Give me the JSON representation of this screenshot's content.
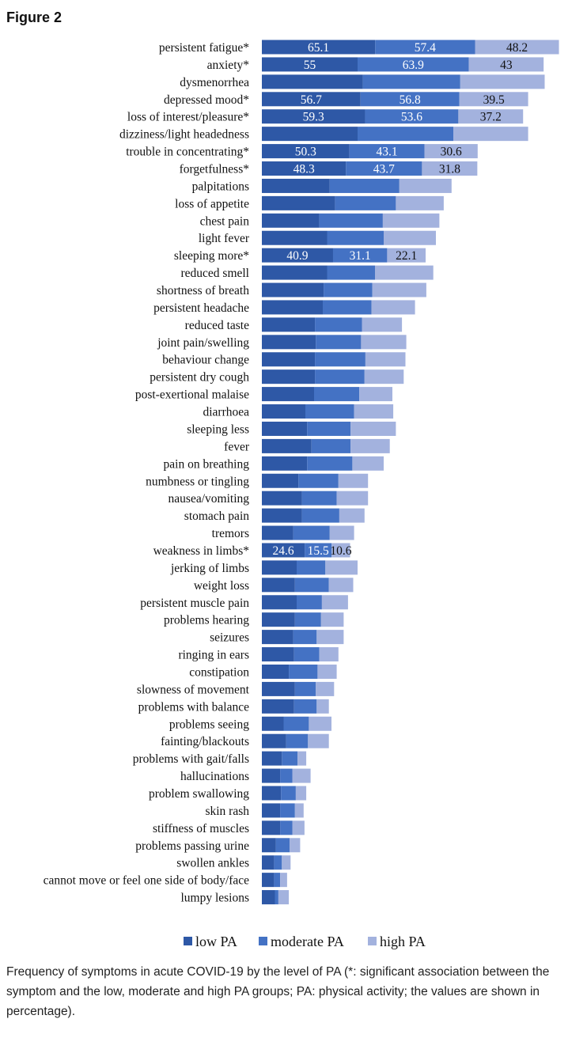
{
  "figure": {
    "title": "Figure 2",
    "caption": "Frequency of symptoms in acute COVID-19 by the level of PA (*: significant association between the symptom and the low, moderate and high PA groups; PA: physical activity; the values are shown in percentage)."
  },
  "chart_data": {
    "type": "bar",
    "orientation": "horizontal",
    "stacked": true,
    "title": "",
    "xlabel": "",
    "ylabel": "",
    "grid": false,
    "legend_position": "bottom",
    "colors": {
      "low PA": "#2e58a6",
      "moderate PA": "#4472c4",
      "high PA": "#a3b2de"
    },
    "categories": [
      "persistent fatigue*",
      "anxiety*",
      "dysmenorrhea",
      "depressed mood*",
      "loss of interest/pleasure*",
      "dizziness/light headedness",
      "trouble in concentrating*",
      "forgetfulness*",
      "palpitations",
      "loss of appetite",
      "chest pain",
      "light fever",
      "sleeping more*",
      "reduced smell",
      "shortness of breath",
      "persistent headache",
      "reduced taste",
      "joint pain/swelling",
      "behaviour change",
      "persistent dry cough",
      "post-exertional malaise",
      "diarrhoea",
      "sleeping less",
      "fever",
      "pain on breathing",
      "numbness or tingling",
      "nausea/vomiting",
      "stomach pain",
      "tremors",
      "weakness in limbs*",
      "jerking of limbs",
      "weight loss",
      "persistent muscle pain",
      "problems hearing",
      "seizures",
      "ringing in ears",
      "constipation",
      "slowness of movement",
      "problems with balance",
      "problems seeing",
      "fainting/blackouts",
      "problems with gait/falls",
      "hallucinations",
      "problem swallowing",
      "skin rash",
      "stiffness of muscles",
      "problems passing urine",
      "swollen ankles",
      "cannot move or feel one side of body/face",
      "lumpy lesions"
    ],
    "series": [
      {
        "name": "low PA",
        "values": [
          65.1,
          55,
          58,
          56.7,
          59.3,
          55,
          50.3,
          48.3,
          39,
          42,
          33,
          37.5,
          40.9,
          37.5,
          35.5,
          35,
          30.5,
          31,
          30.5,
          30.5,
          30,
          25,
          26,
          28.5,
          26,
          21,
          23,
          23,
          18,
          24.6,
          20,
          19,
          20,
          19,
          18,
          18.5,
          15.5,
          19,
          18.5,
          12.5,
          14,
          11.5,
          10.5,
          11,
          10.5,
          10.5,
          8,
          7,
          7,
          7.5
        ]
      },
      {
        "name": "moderate PA",
        "values": [
          57.4,
          63.9,
          56,
          56.8,
          53.6,
          55,
          43.1,
          43.7,
          40,
          35,
          36.5,
          32.5,
          31.1,
          27.5,
          28,
          28,
          27,
          26,
          29,
          28.5,
          26,
          28,
          25,
          22.5,
          26,
          23,
          20,
          21.5,
          21,
          15.5,
          16.5,
          19.5,
          14.5,
          15,
          13.5,
          14.5,
          16.5,
          12,
          13,
          14.5,
          12.5,
          9,
          7,
          8.5,
          8.5,
          7,
          8,
          4.5,
          3.5,
          2
        ]
      },
      {
        "name": "high PA",
        "values": [
          48.2,
          43,
          48.5,
          39.5,
          37.2,
          43,
          30.6,
          31.8,
          30,
          27.5,
          32.5,
          30,
          22.1,
          33.5,
          31,
          25,
          23,
          26,
          23,
          22.5,
          19,
          22.5,
          26,
          22.5,
          18,
          17,
          18,
          14.5,
          14,
          10.6,
          18.5,
          14,
          15,
          13,
          15.5,
          11,
          11,
          10.5,
          7,
          13,
          12,
          5,
          10.5,
          6,
          5,
          7,
          6,
          5,
          4,
          6
        ]
      }
    ],
    "data_labels": [
      {
        "category": "persistent fatigue*",
        "values": [
          "65.1",
          "57.4",
          "48.2"
        ]
      },
      {
        "category": "anxiety*",
        "values": [
          "55",
          "63.9",
          "43"
        ]
      },
      {
        "category": "depressed mood*",
        "values": [
          "56.7",
          "56.8",
          "39.5"
        ]
      },
      {
        "category": "loss of interest/pleasure*",
        "values": [
          "59.3",
          "53.6",
          "37.2"
        ]
      },
      {
        "category": "trouble in concentrating*",
        "values": [
          "50.3",
          "43.1",
          "30.6"
        ]
      },
      {
        "category": "forgetfulness*",
        "values": [
          "48.3",
          "43.7",
          "31.8"
        ]
      },
      {
        "category": "sleeping more*",
        "values": [
          "40.9",
          "31.1",
          "22.1"
        ]
      },
      {
        "category": "weakness in limbs*",
        "values": [
          "24.6",
          "15.5",
          "10.6"
        ]
      }
    ]
  }
}
